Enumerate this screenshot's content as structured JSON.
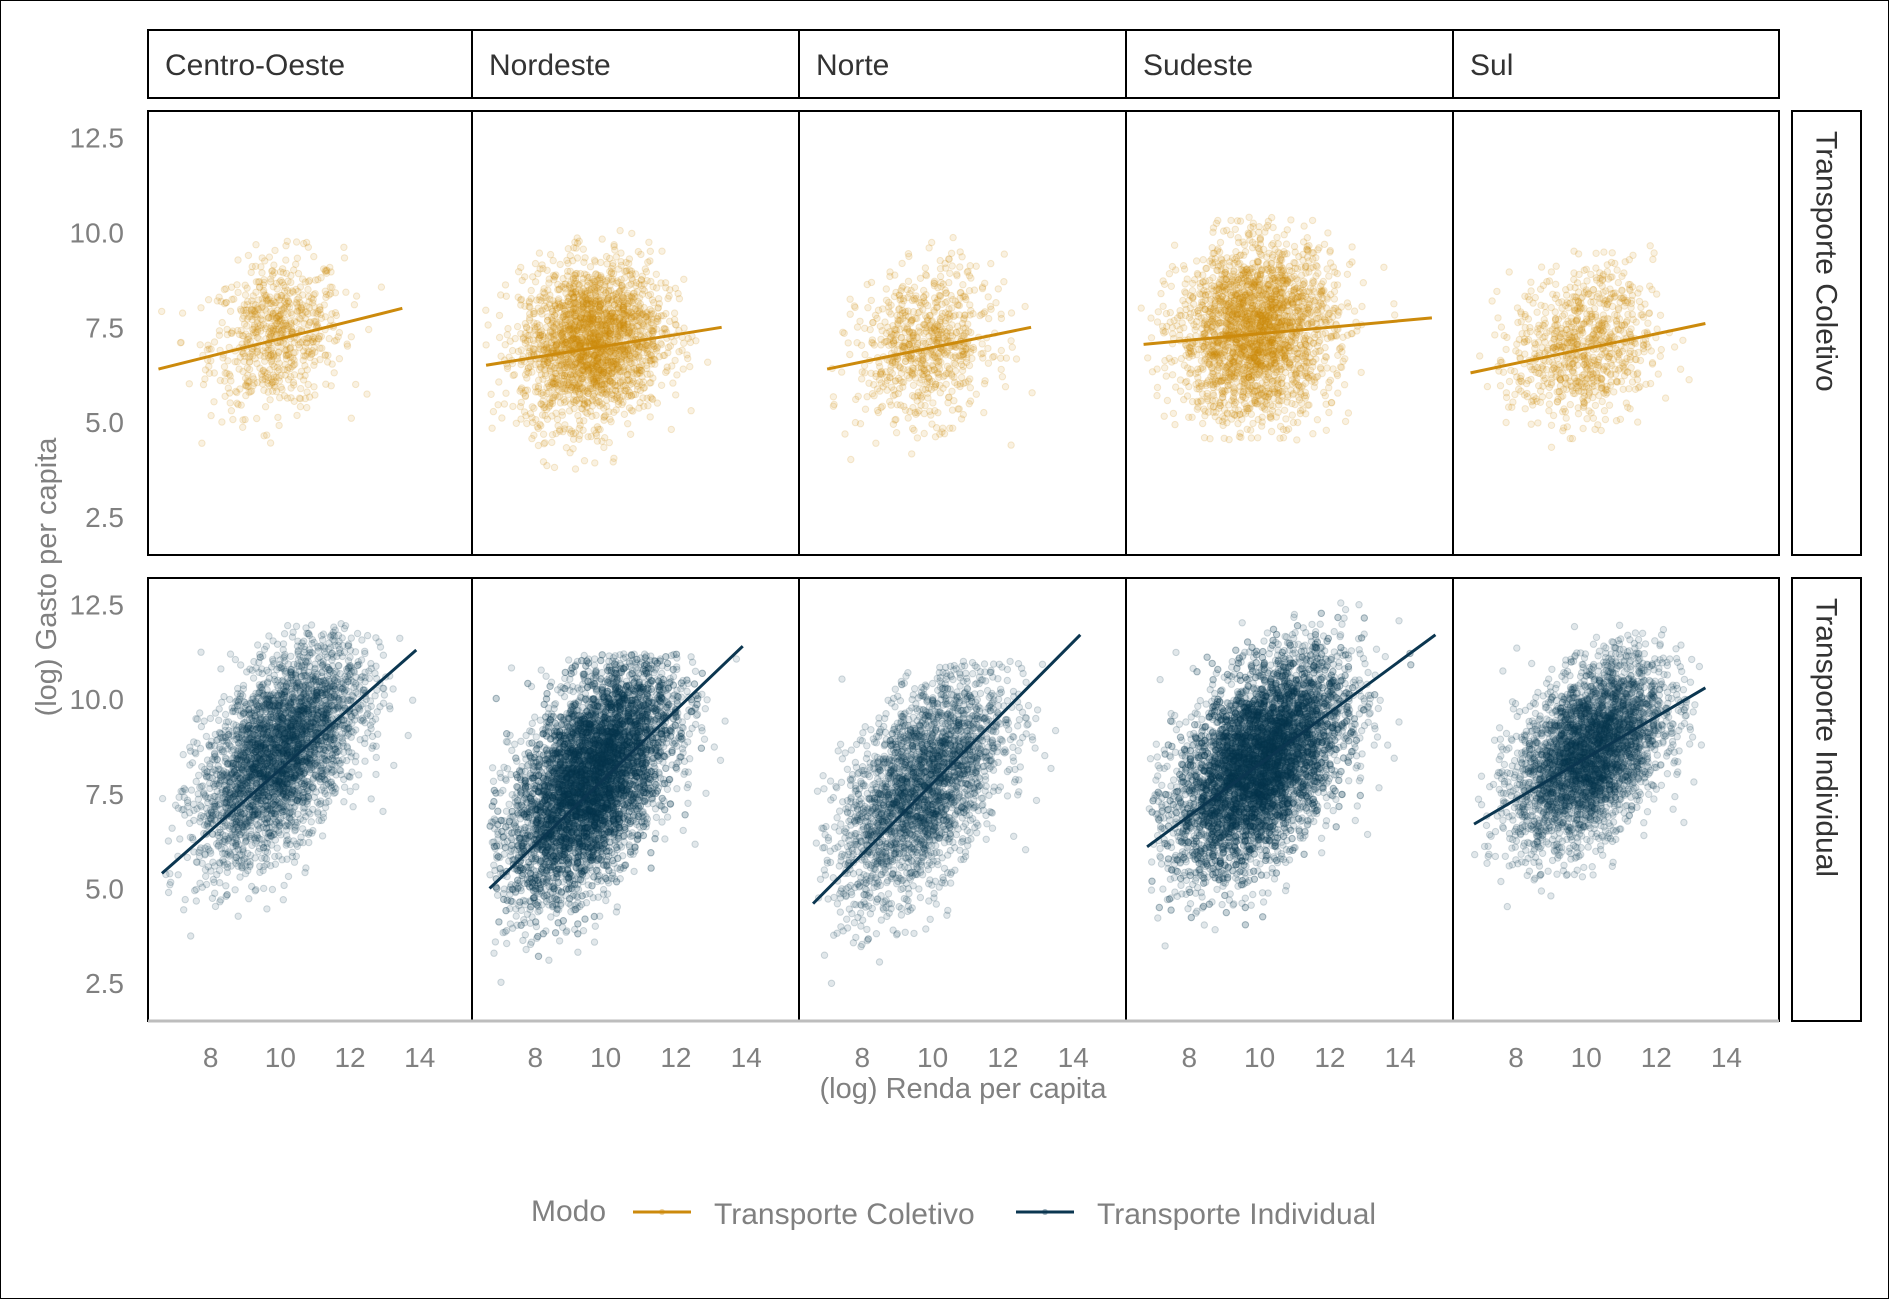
{
  "chart_data": {
    "type": "scatter",
    "facets": {
      "columns": [
        "Centro-Oeste",
        "Nordeste",
        "Norte",
        "Sudeste",
        "Sul"
      ],
      "rows": [
        "Transporte Coletivo",
        "Transporte Individual"
      ]
    },
    "xlabel": "(log) Renda per capita",
    "ylabel": "(log) Gasto per capita",
    "xlim": [
      6.2,
      15.5
    ],
    "ylim": [
      1.5,
      13.2
    ],
    "xticks": [
      8,
      10,
      12,
      14
    ],
    "yticks": [
      2.5,
      5.0,
      7.5,
      10.0,
      12.5
    ],
    "xtick_labels": [
      "8",
      "10",
      "12",
      "14"
    ],
    "ytick_labels": [
      "2.5",
      "5.0",
      "7.5",
      "10.0",
      "12.5"
    ],
    "grid": false,
    "legend": {
      "title": "Modo",
      "position": "bottom",
      "entries": [
        {
          "name": "Transporte Coletivo",
          "color": "#CC8A0C"
        },
        {
          "name": "Transporte Individual",
          "color": "#0B3650"
        }
      ]
    },
    "series": [
      {
        "name": "Transporte Coletivo",
        "color": "#CC8A0C",
        "clouds": [
          {
            "region": "Centro-Oeste",
            "n": 700,
            "x_mean": 9.9,
            "x_sd": 0.95,
            "y_mean": 7.3,
            "y_sd": 1.0,
            "corr": 0.15,
            "x_range": [
              6.4,
              13.0
            ],
            "y_range": [
              4.0,
              10.4
            ]
          },
          {
            "region": "Nordeste",
            "n": 2200,
            "x_mean": 9.6,
            "x_sd": 1.0,
            "y_mean": 7.1,
            "y_sd": 1.05,
            "corr": 0.15,
            "x_range": [
              6.5,
              13.4
            ],
            "y_range": [
              2.6,
              10.1
            ]
          },
          {
            "region": "Norte",
            "n": 750,
            "x_mean": 9.8,
            "x_sd": 0.95,
            "y_mean": 7.0,
            "y_sd": 1.0,
            "corr": 0.15,
            "x_range": [
              6.6,
              12.9
            ],
            "y_range": [
              4.0,
              9.9
            ]
          },
          {
            "region": "Sudeste",
            "n": 2400,
            "x_mean": 9.9,
            "x_sd": 1.1,
            "y_mean": 7.4,
            "y_sd": 1.15,
            "corr": 0.08,
            "x_range": [
              6.6,
              15.0
            ],
            "y_range": [
              4.5,
              10.5
            ]
          },
          {
            "region": "Sul",
            "n": 850,
            "x_mean": 9.9,
            "x_sd": 1.0,
            "y_mean": 7.0,
            "y_sd": 1.0,
            "corr": 0.15,
            "x_range": [
              6.7,
              13.4
            ],
            "y_range": [
              4.0,
              10.5
            ]
          }
        ],
        "fits": [
          {
            "region": "Centro-Oeste",
            "x": [
              6.5,
              13.5
            ],
            "y": [
              6.4,
              8.0
            ]
          },
          {
            "region": "Nordeste",
            "x": [
              6.6,
              13.3
            ],
            "y": [
              6.5,
              7.5
            ]
          },
          {
            "region": "Norte",
            "x": [
              7.0,
              12.8
            ],
            "y": [
              6.4,
              7.5
            ]
          },
          {
            "region": "Sudeste",
            "x": [
              6.7,
              14.9
            ],
            "y": [
              7.05,
              7.75
            ]
          },
          {
            "region": "Sul",
            "x": [
              6.7,
              13.4
            ],
            "y": [
              6.3,
              7.6
            ]
          }
        ]
      },
      {
        "name": "Transporte Individual",
        "color": "#0B3650",
        "clouds": [
          {
            "region": "Centro-Oeste",
            "n": 3500,
            "x_mean": 10.0,
            "x_sd": 1.15,
            "y_mean": 8.6,
            "y_sd": 1.4,
            "corr": 0.55,
            "x_range": [
              6.6,
              14.0
            ],
            "y_range": [
              2.5,
              12.0
            ]
          },
          {
            "region": "Nordeste",
            "n": 6500,
            "x_mean": 9.6,
            "x_sd": 1.15,
            "y_mean": 7.9,
            "y_sd": 1.55,
            "corr": 0.55,
            "x_range": [
              6.7,
              13.9
            ],
            "y_range": [
              2.0,
              11.2
            ]
          },
          {
            "region": "Norte",
            "n": 2800,
            "x_mean": 9.7,
            "x_sd": 1.15,
            "y_mean": 7.7,
            "y_sd": 1.5,
            "corr": 0.55,
            "x_range": [
              6.6,
              14.2
            ],
            "y_range": [
              1.8,
              11.0
            ]
          },
          {
            "region": "Sudeste",
            "n": 6500,
            "x_mean": 10.0,
            "x_sd": 1.2,
            "y_mean": 8.3,
            "y_sd": 1.4,
            "corr": 0.5,
            "x_range": [
              6.8,
              15.0
            ],
            "y_range": [
              2.5,
              12.6
            ]
          },
          {
            "region": "Sul",
            "n": 3800,
            "x_mean": 10.1,
            "x_sd": 1.05,
            "y_mean": 8.6,
            "y_sd": 1.2,
            "corr": 0.45,
            "x_range": [
              6.8,
              13.4
            ],
            "y_range": [
              2.0,
              12.0
            ]
          }
        ],
        "fits": [
          {
            "region": "Centro-Oeste",
            "x": [
              6.6,
              13.9
            ],
            "y": [
              5.4,
              11.3
            ]
          },
          {
            "region": "Nordeste",
            "x": [
              6.7,
              13.9
            ],
            "y": [
              5.0,
              11.4
            ]
          },
          {
            "region": "Norte",
            "x": [
              6.6,
              14.2
            ],
            "y": [
              4.6,
              11.7
            ]
          },
          {
            "region": "Sudeste",
            "x": [
              6.8,
              15.0
            ],
            "y": [
              6.1,
              11.7
            ]
          },
          {
            "region": "Sul",
            "x": [
              6.8,
              13.4
            ],
            "y": [
              6.7,
              10.3
            ]
          }
        ]
      }
    ]
  }
}
